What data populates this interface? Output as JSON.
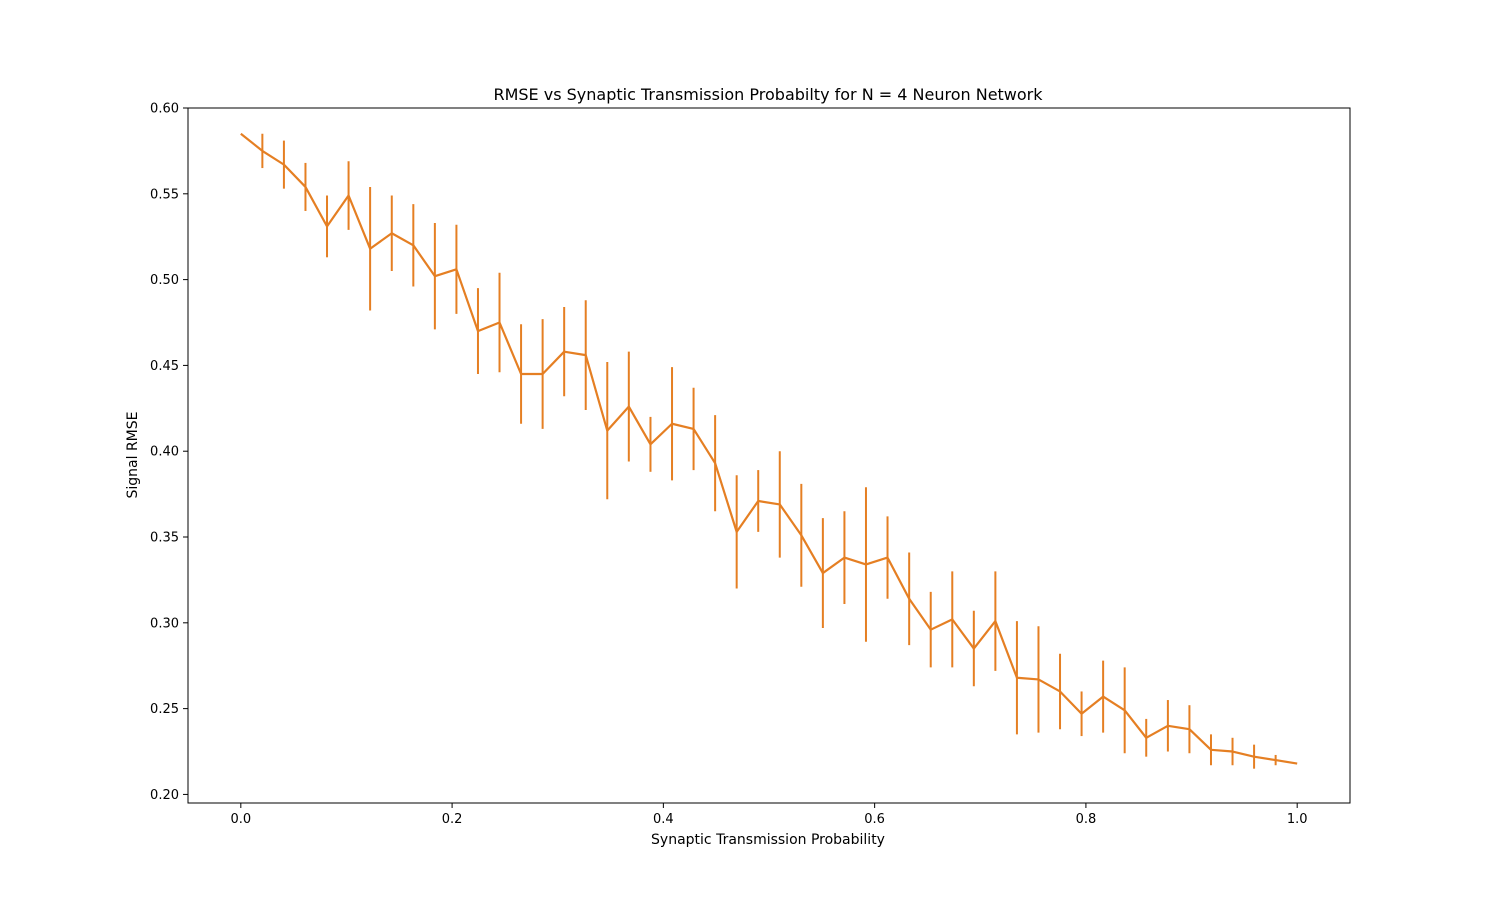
{
  "chart_data": {
    "type": "line",
    "title": "RMSE vs Synaptic Transmission Probabilty  for N = 4 Neuron Network",
    "xlabel": "Synaptic Transmission Probability",
    "ylabel": "Signal RMSE",
    "xlim": [
      -0.05,
      1.05
    ],
    "ylim": [
      0.195,
      0.6
    ],
    "grid": false,
    "legend": "none",
    "color": "#e57f23",
    "x_ticks": [
      "0.0",
      "0.2",
      "0.4",
      "0.6",
      "0.8",
      "1.0"
    ],
    "y_ticks": [
      "0.20",
      "0.25",
      "0.30",
      "0.35",
      "0.40",
      "0.45",
      "0.50",
      "0.55",
      "0.60"
    ],
    "x": [
      0.0,
      0.0204,
      0.0408,
      0.0612,
      0.0816,
      0.102,
      0.1224,
      0.1429,
      0.1633,
      0.1837,
      0.2041,
      0.2245,
      0.2449,
      0.2653,
      0.2857,
      0.3061,
      0.3265,
      0.3469,
      0.3673,
      0.3878,
      0.4082,
      0.4286,
      0.449,
      0.4694,
      0.4898,
      0.5102,
      0.5306,
      0.551,
      0.5714,
      0.5918,
      0.6122,
      0.6327,
      0.6531,
      0.6735,
      0.6939,
      0.7143,
      0.7347,
      0.7551,
      0.7755,
      0.7959,
      0.8163,
      0.8367,
      0.8571,
      0.8776,
      0.898,
      0.9184,
      0.9388,
      0.9592,
      0.9796,
      1.0
    ],
    "y": [
      0.585,
      0.575,
      0.567,
      0.554,
      0.531,
      0.549,
      0.518,
      0.527,
      0.52,
      0.502,
      0.506,
      0.47,
      0.475,
      0.445,
      0.445,
      0.458,
      0.456,
      0.412,
      0.426,
      0.404,
      0.416,
      0.413,
      0.393,
      0.353,
      0.371,
      0.369,
      0.351,
      0.329,
      0.338,
      0.334,
      0.338,
      0.314,
      0.296,
      0.302,
      0.285,
      0.301,
      0.268,
      0.267,
      0.26,
      0.247,
      0.257,
      0.249,
      0.233,
      0.24,
      0.238,
      0.226,
      0.225,
      0.222,
      0.22,
      0.218
    ],
    "yerr": [
      0.0,
      0.01,
      0.014,
      0.014,
      0.018,
      0.02,
      0.036,
      0.022,
      0.024,
      0.031,
      0.026,
      0.025,
      0.029,
      0.029,
      0.032,
      0.026,
      0.032,
      0.04,
      0.032,
      0.016,
      0.033,
      0.024,
      0.028,
      0.033,
      0.018,
      0.031,
      0.03,
      0.032,
      0.027,
      0.045,
      0.024,
      0.027,
      0.022,
      0.028,
      0.022,
      0.029,
      0.033,
      0.031,
      0.022,
      0.013,
      0.021,
      0.025,
      0.011,
      0.015,
      0.014,
      0.009,
      0.008,
      0.007,
      0.003,
      0.0
    ]
  }
}
